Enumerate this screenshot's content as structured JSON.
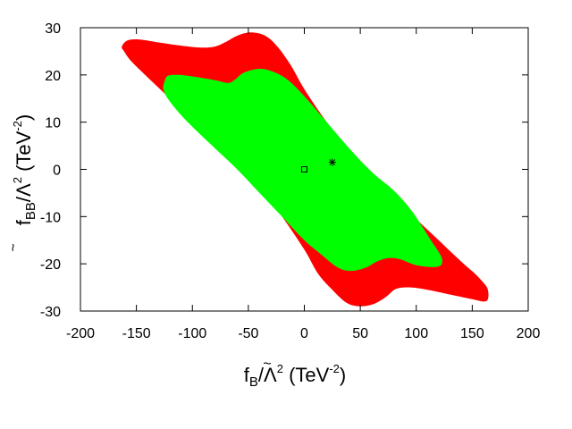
{
  "chart_data": {
    "type": "area",
    "title": "",
    "xlabel": {
      "tilde": "~",
      "base": "f",
      "sub": "B",
      "rest": "/Λ",
      "sup1": "2",
      "paren_open": " (TeV",
      "sup2": "-2",
      "paren_close": ")"
    },
    "ylabel": {
      "tilde": "~",
      "base": "f",
      "sub": "BB",
      "rest": "/Λ",
      "sup1": "2",
      "paren_open": " (TeV",
      "sup2": "-2",
      "paren_close": ")"
    },
    "xlim": [
      -200,
      200
    ],
    "ylim": [
      -30,
      30
    ],
    "xticks": [
      -200,
      -150,
      -100,
      -50,
      0,
      50,
      100,
      150,
      200
    ],
    "yticks": [
      -30,
      -20,
      -10,
      0,
      10,
      20,
      30
    ],
    "grid": false,
    "legend": "none",
    "regions": [
      {
        "color": "#ff0000",
        "points": [
          [
            -163,
            26
          ],
          [
            -158,
            27.3
          ],
          [
            -147,
            27.5
          ],
          [
            -128,
            26.8
          ],
          [
            -110,
            26.2
          ],
          [
            -92,
            25.8
          ],
          [
            -80,
            26.0
          ],
          [
            -70,
            27.0
          ],
          [
            -60,
            28.3
          ],
          [
            -48,
            29.0
          ],
          [
            -35,
            28.3
          ],
          [
            -24,
            26.0
          ],
          [
            -12,
            22.0
          ],
          [
            0,
            17.0
          ],
          [
            20,
            10.0
          ],
          [
            40,
            4.0
          ],
          [
            60,
            -1.0
          ],
          [
            80,
            -5.5
          ],
          [
            100,
            -10.5
          ],
          [
            120,
            -15.0
          ],
          [
            140,
            -19.5
          ],
          [
            152,
            -22.0
          ],
          [
            160,
            -24.0
          ],
          [
            164,
            -25.5
          ],
          [
            164,
            -27.5
          ],
          [
            160,
            -28.0
          ],
          [
            150,
            -27.5
          ],
          [
            130,
            -26.5
          ],
          [
            110,
            -25.5
          ],
          [
            95,
            -25.0
          ],
          [
            82,
            -25.3
          ],
          [
            73,
            -27.0
          ],
          [
            62,
            -28.5
          ],
          [
            50,
            -29.0
          ],
          [
            38,
            -28.3
          ],
          [
            25,
            -25.5
          ],
          [
            12,
            -22.0
          ],
          [
            0,
            -17.0
          ],
          [
            -20,
            -10.0
          ],
          [
            -40,
            -4.0
          ],
          [
            -60,
            1.0
          ],
          [
            -80,
            6.0
          ],
          [
            -100,
            10.5
          ],
          [
            -120,
            15.0
          ],
          [
            -140,
            19.5
          ],
          [
            -155,
            23.0
          ],
          [
            -161,
            25.0
          ]
        ]
      },
      {
        "color": "#00ff00",
        "points": [
          [
            -125,
            18.5
          ],
          [
            -122,
            19.8
          ],
          [
            -112,
            20.0
          ],
          [
            -95,
            19.5
          ],
          [
            -78,
            18.8
          ],
          [
            -68,
            18.3
          ],
          [
            -62,
            19.0
          ],
          [
            -54,
            20.5
          ],
          [
            -40,
            21.3
          ],
          [
            -28,
            20.7
          ],
          [
            -15,
            19.0
          ],
          [
            0,
            15.5
          ],
          [
            20,
            10.0
          ],
          [
            40,
            4.5
          ],
          [
            60,
            -0.5
          ],
          [
            80,
            -4.5
          ],
          [
            95,
            -8.5
          ],
          [
            105,
            -12.0
          ],
          [
            113,
            -15.0
          ],
          [
            120,
            -17.5
          ],
          [
            123,
            -19.0
          ],
          [
            122,
            -20.3
          ],
          [
            115,
            -20.7
          ],
          [
            100,
            -20.3
          ],
          [
            85,
            -19.0
          ],
          [
            75,
            -18.8
          ],
          [
            65,
            -19.5
          ],
          [
            55,
            -20.8
          ],
          [
            42,
            -21.5
          ],
          [
            30,
            -20.8
          ],
          [
            15,
            -18.0
          ],
          [
            0,
            -15.0
          ],
          [
            -20,
            -10.0
          ],
          [
            -40,
            -5.0
          ],
          [
            -60,
            0.0
          ],
          [
            -80,
            4.5
          ],
          [
            -100,
            9.0
          ],
          [
            -112,
            12.0
          ],
          [
            -122,
            15.0
          ],
          [
            -126,
            17.0
          ]
        ]
      }
    ],
    "markers": [
      {
        "shape": "square",
        "x": 0,
        "y": 0
      },
      {
        "shape": "star",
        "x": 25,
        "y": 1.5
      }
    ]
  }
}
